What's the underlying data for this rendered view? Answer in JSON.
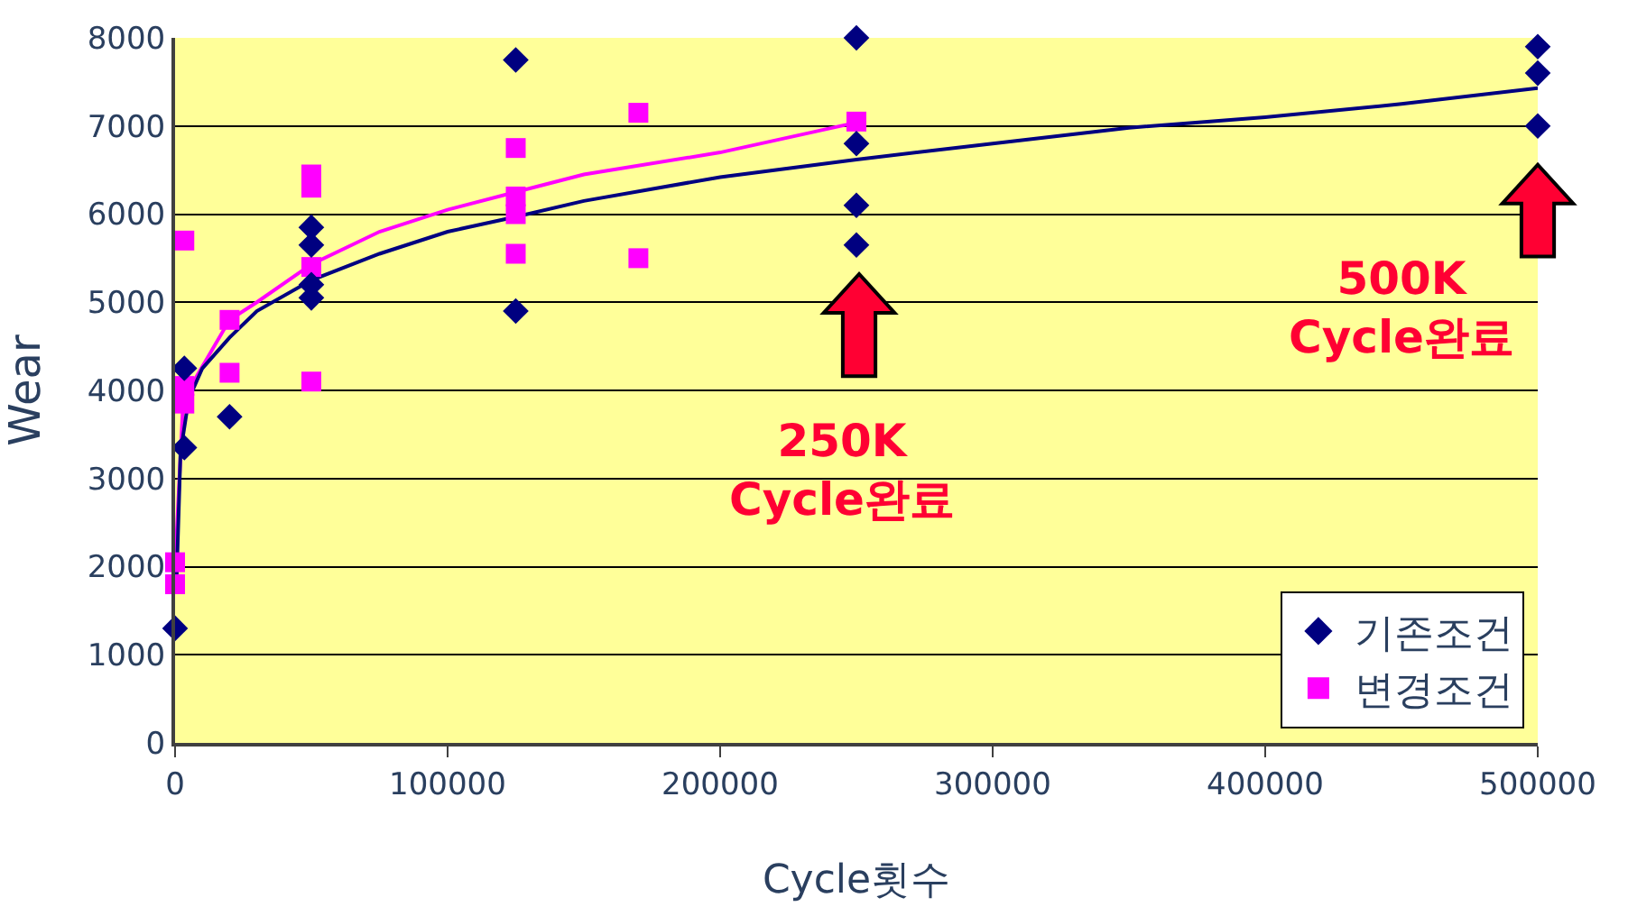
{
  "chart_data": {
    "type": "scatter",
    "xlabel": "Cycle횟수",
    "ylabel": "Wear",
    "xlim": [
      0,
      500000
    ],
    "xticks": [
      0,
      100000,
      200000,
      300000,
      400000,
      500000
    ],
    "ylim": [
      0,
      8000
    ],
    "yticks": [
      0,
      1000,
      2000,
      3000,
      4000,
      5000,
      6000,
      7000,
      8000
    ],
    "grid": "y",
    "legend": "bottom right",
    "series": [
      {
        "name": "기존조건",
        "color": "#000080",
        "marker": "diamond",
        "x": [
          0,
          3400,
          3400,
          20000,
          50000,
          50000,
          50000,
          50000,
          125000,
          125000,
          250000,
          250000,
          250000,
          250000,
          500000,
          500000,
          500000
        ],
        "values": [
          1300,
          4250,
          3350,
          3700,
          5850,
          5650,
          5200,
          5050,
          7750,
          4900,
          8000,
          6800,
          6100,
          5650,
          7900,
          7600,
          7000
        ]
      },
      {
        "name": "변경조건",
        "color": "#ff00ff",
        "marker": "square",
        "x": [
          3400,
          3400,
          3400,
          0,
          0,
          20000,
          20000,
          50000,
          50000,
          50000,
          50000,
          125000,
          125000,
          125000,
          125000,
          170000,
          170000,
          250000
        ],
        "values": [
          5700,
          4050,
          3850,
          2050,
          1800,
          4800,
          4200,
          6450,
          6300,
          5400,
          4100,
          6750,
          6200,
          6000,
          5550,
          7150,
          5500,
          7050
        ]
      },
      {
        "type": "line",
        "color": "#000080",
        "x": [
          500,
          2000,
          5000,
          10000,
          20000,
          30000,
          50000,
          75000,
          100000,
          125000,
          150000,
          200000,
          250000,
          300000,
          350000,
          400000,
          450000,
          500000
        ],
        "values": [
          1800,
          3300,
          3900,
          4250,
          4600,
          4900,
          5250,
          5550,
          5800,
          5970,
          6150,
          6420,
          6620,
          6800,
          6980,
          7100,
          7250,
          7430
        ]
      },
      {
        "type": "line",
        "color": "#ff00ff",
        "x": [
          0,
          3000,
          20000,
          30000,
          50000,
          75000,
          100000,
          125000,
          150000,
          200000,
          250000
        ],
        "values": [
          2000,
          3900,
          4800,
          5000,
          5430,
          5800,
          6050,
          6250,
          6450,
          6700,
          7040
        ]
      }
    ],
    "annotations": [
      "250K\nCycle완료",
      "500K\nCycle완료"
    ]
  }
}
